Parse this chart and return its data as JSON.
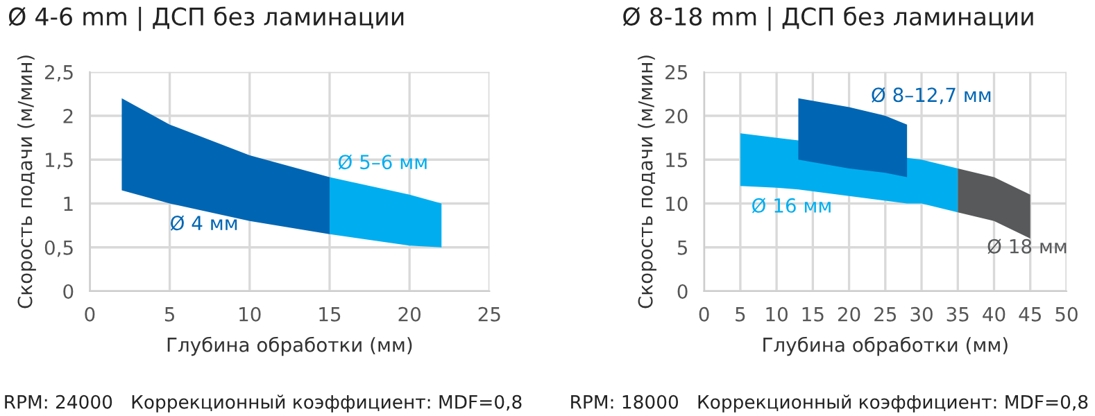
{
  "chart_data": [
    {
      "type": "area",
      "title": "Ø 4-6 mm | ДСП без ламинации",
      "xlabel": "Глубина обработки (мм)",
      "ylabel": "Скорость подачи (м/мин)",
      "xlim": [
        0,
        25
      ],
      "xticks": [
        0,
        5,
        10,
        15,
        20,
        25
      ],
      "ylim": [
        0,
        2.5
      ],
      "yticks": [
        0,
        {
          "value": 0.5,
          "label": "0,5"
        },
        1,
        {
          "value": 1.5,
          "label": "1,5"
        },
        2,
        {
          "value": 2.5,
          "label": "2,5"
        }
      ],
      "grid": true,
      "legend": false,
      "series": [
        {
          "name": "Ø 4 мм",
          "color": "#0066b3",
          "x": [
            2,
            5,
            10,
            15
          ],
          "values": [
            null,
            null,
            null,
            null
          ],
          "upper": [
            2.2,
            1.9,
            1.55,
            1.3
          ],
          "lower": [
            1.15,
            1.0,
            0.8,
            0.65
          ]
        },
        {
          "name": "Ø 5–6 мм",
          "color": "#00aeef",
          "x": [
            15,
            20,
            22
          ],
          "values": [
            null,
            null,
            null
          ],
          "upper": [
            1.3,
            1.1,
            1.0
          ],
          "lower": [
            0.65,
            0.52,
            0.5
          ]
        }
      ],
      "annotations": [
        "RPM: 24000   Коррекционный коэффициент: MDF=0,8"
      ]
    },
    {
      "type": "area",
      "title": "Ø 8-18 mm | ДСП без ламинации",
      "xlabel": "Глубина обработки (мм)",
      "ylabel": "Скорость подачи (м/мин)",
      "xlim": [
        0,
        50
      ],
      "xticks": [
        0,
        5,
        10,
        15,
        20,
        25,
        30,
        35,
        40,
        45,
        50
      ],
      "ylim": [
        0,
        25
      ],
      "yticks": [
        0,
        5,
        10,
        15,
        20,
        25
      ],
      "grid": true,
      "legend": false,
      "series": [
        {
          "name": "Ø 16 мм",
          "color": "#00aeef",
          "x": [
            5,
            10,
            13,
            28,
            30,
            35
          ],
          "values": [
            null,
            null,
            null,
            null,
            null,
            null
          ],
          "upper": [
            18,
            17.5,
            17.2,
            15.2,
            15,
            14
          ],
          "lower": [
            12,
            11.8,
            11.6,
            10,
            10,
            9
          ]
        },
        {
          "name": "Ø 8–12,7 мм",
          "color": "#0066b3",
          "x": [
            13,
            20,
            25,
            28
          ],
          "values": [
            null,
            null,
            null,
            null
          ],
          "upper": [
            22,
            21,
            20,
            19
          ],
          "lower": [
            15,
            14,
            13.5,
            13
          ]
        },
        {
          "name": "Ø 18 мм",
          "color": "#58595b",
          "x": [
            35,
            40,
            45
          ],
          "values": [
            null,
            null,
            null
          ],
          "upper": [
            14,
            13,
            11
          ],
          "lower": [
            9,
            8,
            6
          ]
        }
      ],
      "annotations": [
        "RPM: 18000   Коррекционный коэффициент: MDF=0,8"
      ]
    }
  ]
}
